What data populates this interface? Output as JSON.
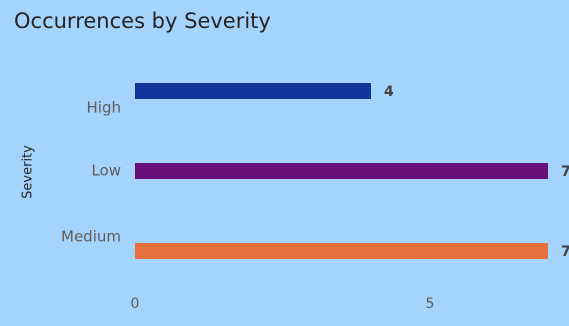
{
  "chart_data": {
    "type": "bar",
    "orientation": "horizontal",
    "title": "Occurrences by Severity",
    "y_label": "Severity",
    "categories": [
      "High",
      "Low",
      "Medium"
    ],
    "values": [
      4,
      7,
      7
    ],
    "colors": [
      "#13349a",
      "#6b0f7a",
      "#e8703f"
    ],
    "xlim": [
      0,
      7
    ],
    "xticks": [
      0,
      5
    ],
    "grid": true,
    "background": "#a4d3fb"
  }
}
